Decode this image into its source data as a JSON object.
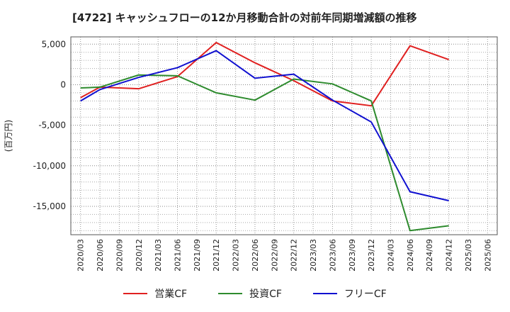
{
  "chart_data": {
    "type": "line",
    "title": "[4722]  キャッシュフローの12か月移動合計の対前年同期増減額の推移",
    "ylabel": "(百万円)",
    "ylim": [
      -18500,
      5900
    ],
    "yticks": [
      5000,
      0,
      -5000,
      -10000,
      -15000
    ],
    "ytick_labels": [
      "5,000",
      "0",
      "-5,000",
      "-10,000",
      "-15,000"
    ],
    "categories": [
      "2020/03",
      "2020/06",
      "2020/09",
      "2020/12",
      "2021/03",
      "2021/06",
      "2021/09",
      "2021/12",
      "2022/03",
      "2022/06",
      "2022/09",
      "2022/12",
      "2023/03",
      "2023/06",
      "2023/09",
      "2023/12",
      "2024/03",
      "2024/06",
      "2024/09",
      "2024/12",
      "2025/03",
      "2025/06"
    ],
    "series": [
      {
        "name": "営業CF",
        "color": "#e02020",
        "values": [
          -1600,
          -300,
          null,
          -500,
          null,
          1000,
          null,
          5200,
          null,
          2700,
          null,
          500,
          null,
          -2000,
          null,
          -2600,
          null,
          4800,
          null,
          3100,
          null,
          null
        ]
      },
      {
        "name": "投資CF",
        "color": "#2e8b2e",
        "values": [
          -400,
          -300,
          null,
          1200,
          null,
          1100,
          null,
          -1000,
          null,
          -1900,
          null,
          700,
          null,
          100,
          null,
          -2000,
          null,
          -18000,
          null,
          -17400,
          null,
          null
        ]
      },
      {
        "name": "フリーCF",
        "color": "#1010d0",
        "values": [
          -2000,
          -600,
          null,
          900,
          null,
          2100,
          null,
          4200,
          null,
          800,
          null,
          1300,
          null,
          -1900,
          null,
          -4600,
          null,
          -13200,
          null,
          -14300,
          null,
          null
        ]
      }
    ],
    "grid": true,
    "legend_position": "bottom"
  }
}
